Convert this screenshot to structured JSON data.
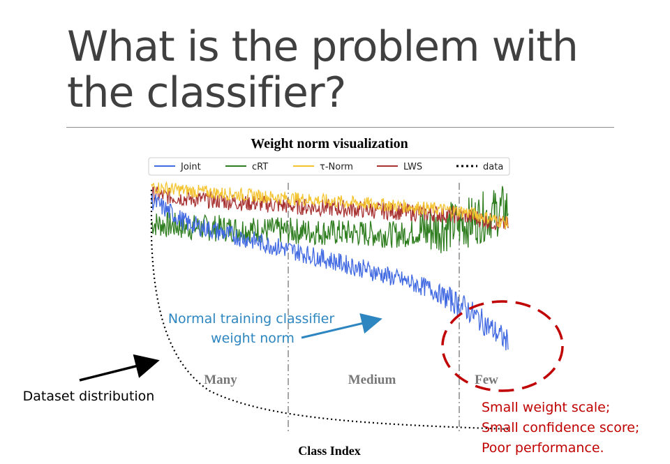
{
  "slide": {
    "title_line1": "What is the problem with",
    "title_line2": "the classifier?"
  },
  "chart_data": {
    "type": "line",
    "title": "Weight norm visualization",
    "xlabel": "Class Index",
    "ylabel": "",
    "grid": false,
    "legend_placement": "top",
    "legend": [
      {
        "name": "Joint",
        "color": "#4169e1",
        "style": "solid"
      },
      {
        "name": "cRT",
        "color": "#2e7d1e",
        "style": "solid"
      },
      {
        "name": "τ-Norm",
        "color": "#f4c430",
        "style": "solid"
      },
      {
        "name": "LWS",
        "color": "#a83232",
        "style": "solid"
      },
      {
        "name": "data",
        "color": "#000000",
        "style": "dotted"
      }
    ],
    "regions": [
      "Many",
      "Medium",
      "Few"
    ],
    "series": [
      {
        "name": "Joint",
        "x": [
          0,
          50,
          100,
          200,
          390,
          600,
          780,
          880,
          1000
        ],
        "y": [
          0.92,
          0.86,
          0.8,
          0.75,
          0.66,
          0.56,
          0.46,
          0.36,
          0.18
        ]
      },
      {
        "name": "cRT",
        "x": [
          0,
          100,
          390,
          700,
          880,
          1000
        ],
        "y": [
          0.8,
          0.78,
          0.76,
          0.74,
          0.8,
          0.88
        ]
      },
      {
        "name": "τ-Norm",
        "x": [
          0,
          100,
          390,
          700,
          880,
          1000
        ],
        "y": [
          0.99,
          0.97,
          0.93,
          0.89,
          0.86,
          0.8
        ]
      },
      {
        "name": "LWS",
        "x": [
          0,
          100,
          390,
          700,
          880,
          1000
        ],
        "y": [
          0.95,
          0.93,
          0.89,
          0.86,
          0.84,
          0.79
        ]
      }
    ]
  },
  "annotations": {
    "blue_label_line1": "Normal training classifier",
    "blue_label_line2": "weight norm",
    "dataset_label": "Dataset distribution",
    "red_line1": "Small weight scale;",
    "red_line2": "Small confidence score;",
    "red_line3": "Poor performance."
  },
  "colors": {
    "title": "#404040",
    "blue_annotation": "#2e86c1",
    "red_annotation": "#c00000",
    "joint": "#4169e1",
    "crt": "#2e7d1e",
    "taunorm": "#f4c430",
    "lws": "#a83232"
  }
}
